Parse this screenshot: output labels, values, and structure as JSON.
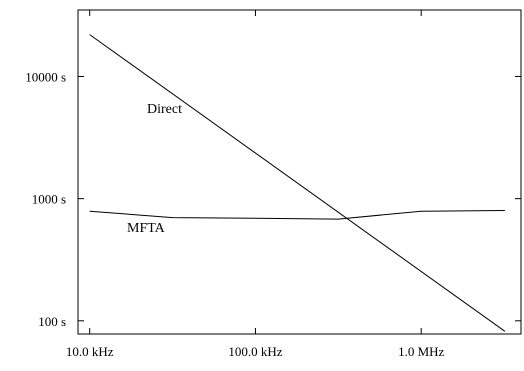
{
  "chart_data": {
    "type": "line",
    "title": "",
    "xlabel": "",
    "ylabel": "",
    "x_scale": "log",
    "y_scale": "log",
    "xlim": [
      8500,
      4000000
    ],
    "ylim": [
      78,
      35000
    ],
    "grid": false,
    "x_ticks": [
      {
        "value": 10000,
        "label": "10.0 kHz"
      },
      {
        "value": 100000,
        "label": "100.0 kHz"
      },
      {
        "value": 1000000,
        "label": "1.0 MHz"
      }
    ],
    "y_ticks": [
      {
        "value": 100,
        "label": "100 s"
      },
      {
        "value": 1000,
        "label": "1000 s"
      },
      {
        "value": 10000,
        "label": "10000 s"
      }
    ],
    "series": [
      {
        "name": "Direct",
        "x": [
          10000,
          3200000
        ],
        "y": [
          22000,
          82
        ]
      },
      {
        "name": "MFTA",
        "x": [
          10000,
          31600,
          100000,
          316000,
          1000000,
          3200000
        ],
        "y": [
          790,
          700,
          690,
          680,
          790,
          800
        ]
      }
    ]
  }
}
